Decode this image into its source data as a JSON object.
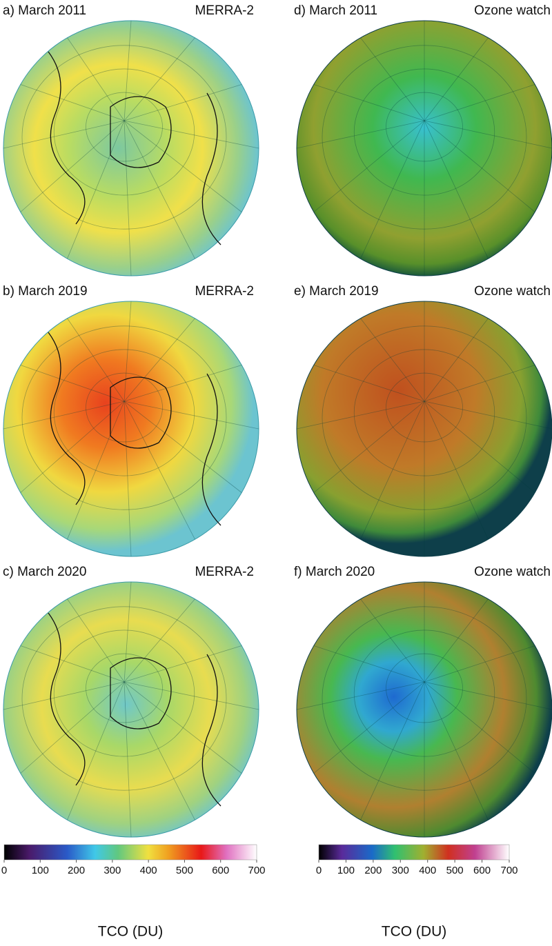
{
  "panels": [
    {
      "label": "a) March 2011",
      "source": "MERRA-2"
    },
    {
      "label": "d) March 2011",
      "source": "Ozone watch"
    },
    {
      "label": "b) March 2019",
      "source": "MERRA-2"
    },
    {
      "label": "e) March 2019",
      "source": "Ozone watch"
    },
    {
      "label": "c) March 2020",
      "source": "MERRA-2"
    },
    {
      "label": "f) March 2020",
      "source": "Ozone watch"
    }
  ],
  "colorbars": [
    {
      "ticks": [
        0,
        100,
        200,
        300,
        400,
        500,
        600,
        700
      ],
      "label": "TCO (DU)"
    },
    {
      "ticks": [
        0,
        100,
        200,
        300,
        400,
        500,
        600,
        700
      ],
      "label": "TCO (DU)"
    }
  ]
}
